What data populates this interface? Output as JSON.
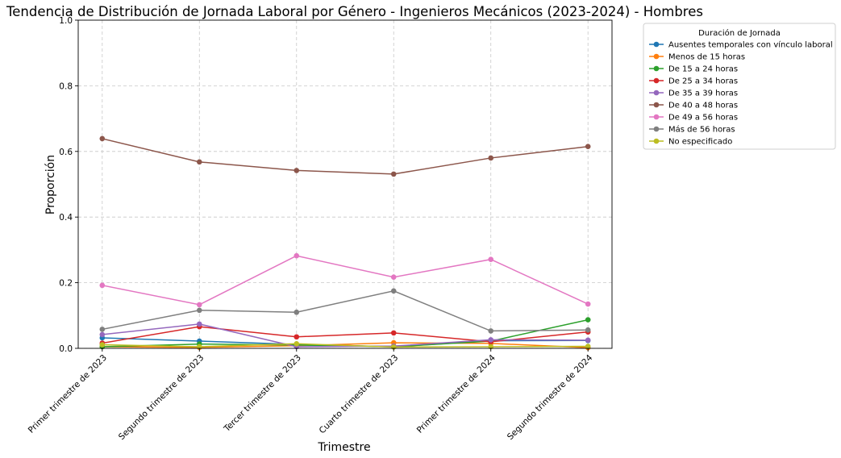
{
  "chart_data": {
    "type": "line",
    "title": "Tendencia de Distribución de Jornada Laboral por Género - Ingenieros Mecánicos (2023-2024) - Hombres",
    "xlabel": "Trimestre",
    "ylabel": "Proporción",
    "ylim": [
      0,
      1
    ],
    "yticks": [
      "0.0",
      "0.2",
      "0.4",
      "0.6",
      "0.8",
      "1.0"
    ],
    "grid": true,
    "legend_title": "Duración de Jornada",
    "legend_position": "outside-top-right",
    "categories": [
      "Primer trimestre de 2023",
      "Segundo trimestre de 2023",
      "Tercer trimestre de 2023",
      "Cuarto trimestre de 2023",
      "Primer trimestre de 2024",
      "Segundo trimestre de 2024"
    ],
    "series": [
      {
        "name": "Ausentes temporales con vínculo laboral",
        "color": "#1f77b4",
        "values": [
          0.032,
          0.022,
          0.012,
          0.005,
          0.023,
          0.024
        ]
      },
      {
        "name": "Menos de 15 horas",
        "color": "#ff7f0e",
        "values": [
          0.005,
          0.003,
          0.008,
          0.017,
          0.015,
          0.002
        ]
      },
      {
        "name": "De 15 a 24 horas",
        "color": "#2ca02c",
        "values": [
          0.005,
          0.013,
          0.01,
          0.005,
          0.022,
          0.087
        ]
      },
      {
        "name": "De 25 a 34 horas",
        "color": "#d62728",
        "values": [
          0.016,
          0.066,
          0.035,
          0.047,
          0.02,
          0.05
        ]
      },
      {
        "name": "De 35 a 39 horas",
        "color": "#9467bd",
        "values": [
          0.042,
          0.074,
          0.005,
          0.007,
          0.026,
          0.025
        ]
      },
      {
        "name": "De 40 a 48 horas",
        "color": "#8c564b",
        "values": [
          0.639,
          0.568,
          0.542,
          0.531,
          0.58,
          0.615
        ]
      },
      {
        "name": "De 49 a 56 horas",
        "color": "#e377c2",
        "values": [
          0.192,
          0.133,
          0.282,
          0.217,
          0.271,
          0.135
        ]
      },
      {
        "name": "Más de 56 horas",
        "color": "#7f7f7f",
        "values": [
          0.058,
          0.116,
          0.11,
          0.175,
          0.053,
          0.056
        ]
      },
      {
        "name": "No especificado",
        "color": "#bcbd22",
        "values": [
          0.011,
          0.005,
          0.014,
          0.004,
          0.005,
          0.006
        ]
      }
    ]
  }
}
